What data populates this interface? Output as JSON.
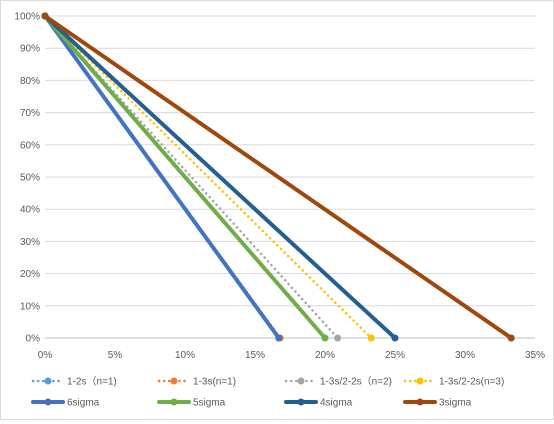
{
  "chart_data": {
    "type": "line",
    "xlim": [
      0,
      0.35
    ],
    "ylim": [
      0,
      1
    ],
    "x_ticks": [
      0,
      0.05,
      0.1,
      0.15,
      0.2,
      0.25,
      0.3,
      0.35
    ],
    "x_tick_labels": [
      "0%",
      "5%",
      "10%",
      "15%",
      "20%",
      "25%",
      "30%",
      "35%"
    ],
    "y_ticks": [
      0,
      0.1,
      0.2,
      0.3,
      0.4,
      0.5,
      0.6,
      0.7,
      0.8,
      0.9,
      1.0
    ],
    "y_tick_labels": [
      "0%",
      "10%",
      "20%",
      "30%",
      "40%",
      "50%",
      "60%",
      "70%",
      "80%",
      "90%",
      "100%"
    ],
    "grid": "horizontal",
    "legend_position": "bottom",
    "series": [
      {
        "name": "1-2s（n=1)",
        "color": "#5b9bd5",
        "style": "dotted",
        "points": [
          [
            0,
            1.0
          ],
          [
            0.167,
            0.0
          ]
        ]
      },
      {
        "name": "1-3s(n=1)",
        "color": "#ed7d31",
        "style": "dotted",
        "points": [
          [
            0,
            1.0
          ],
          [
            0.168,
            0.0
          ]
        ]
      },
      {
        "name": "1-3s/2-2s（n=2)",
        "color": "#a5a5a5",
        "style": "dotted",
        "points": [
          [
            0,
            1.0
          ],
          [
            0.209,
            0.0
          ]
        ]
      },
      {
        "name": "1-3s/2-2s(n=3)",
        "color": "#ffc000",
        "style": "dotted",
        "points": [
          [
            0,
            1.0
          ],
          [
            0.233,
            0.0
          ]
        ]
      },
      {
        "name": "6sigma",
        "color": "#4472c4",
        "style": "solid",
        "points": [
          [
            0,
            1.0
          ],
          [
            0.167,
            0.0
          ]
        ]
      },
      {
        "name": "5sigma",
        "color": "#70ad47",
        "style": "solid",
        "points": [
          [
            0,
            1.0
          ],
          [
            0.2,
            0.0
          ]
        ]
      },
      {
        "name": "4sigma",
        "color": "#255e91",
        "style": "solid",
        "points": [
          [
            0,
            1.0
          ],
          [
            0.25,
            0.0
          ]
        ]
      },
      {
        "name": "3sigma",
        "color": "#9e480e",
        "style": "solid",
        "points": [
          [
            0,
            1.0
          ],
          [
            0.333,
            0.0
          ]
        ]
      }
    ]
  }
}
